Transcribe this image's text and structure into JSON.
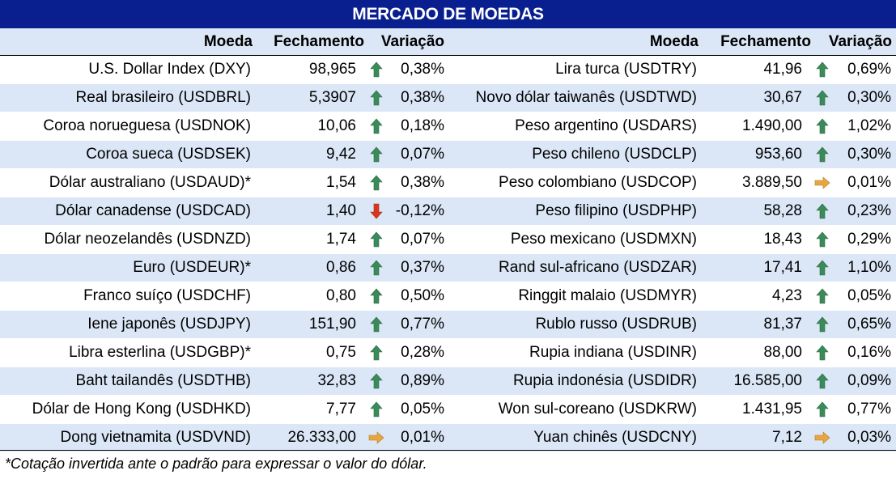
{
  "title": "MERCADO DE MOEDAS",
  "headers": {
    "left": {
      "currency": "Moeda",
      "close": "Fechamento",
      "change": "Variação"
    },
    "right": {
      "currency": "Moeda",
      "close": "Fechamento",
      "change": "Variação"
    }
  },
  "colors": {
    "title_bg": "#0a1f8f",
    "band": "#dbe7f6",
    "up": "#3a8a5a",
    "down": "#d8371f",
    "flat": "#e8a640"
  },
  "rows": [
    {
      "left": {
        "name": "U.S. Dollar Index (DXY)",
        "close": "98,965",
        "dir": "up",
        "change": "0,38%"
      },
      "right": {
        "name": "Lira turca (USDTRY)",
        "close": "41,96",
        "dir": "up",
        "change": "0,69%"
      }
    },
    {
      "left": {
        "name": "Real brasileiro (USDBRL)",
        "close": "5,3907",
        "dir": "up",
        "change": "0,38%"
      },
      "right": {
        "name": "Novo dólar taiwanês (USDTWD)",
        "close": "30,67",
        "dir": "up",
        "change": "0,30%"
      }
    },
    {
      "left": {
        "name": "Coroa norueguesa (USDNOK)",
        "close": "10,06",
        "dir": "up",
        "change": "0,18%"
      },
      "right": {
        "name": "Peso argentino (USDARS)",
        "close": "1.490,00",
        "dir": "up",
        "change": "1,02%"
      }
    },
    {
      "left": {
        "name": "Coroa sueca (USDSEK)",
        "close": "9,42",
        "dir": "up",
        "change": "0,07%"
      },
      "right": {
        "name": "Peso chileno (USDCLP)",
        "close": "953,60",
        "dir": "up",
        "change": "0,30%"
      }
    },
    {
      "left": {
        "name": "Dólar australiano (USDAUD)*",
        "close": "1,54",
        "dir": "up",
        "change": "0,38%"
      },
      "right": {
        "name": "Peso colombiano (USDCOP)",
        "close": "3.889,50",
        "dir": "flat",
        "change": "0,01%"
      }
    },
    {
      "left": {
        "name": "Dólar canadense (USDCAD)",
        "close": "1,40",
        "dir": "down",
        "change": "-0,12%"
      },
      "right": {
        "name": "Peso filipino (USDPHP)",
        "close": "58,28",
        "dir": "up",
        "change": "0,23%"
      }
    },
    {
      "left": {
        "name": "Dólar neozelandês (USDNZD)",
        "close": "1,74",
        "dir": "up",
        "change": "0,07%"
      },
      "right": {
        "name": "Peso mexicano (USDMXN)",
        "close": "18,43",
        "dir": "up",
        "change": "0,29%"
      }
    },
    {
      "left": {
        "name": "Euro (USDEUR)*",
        "close": "0,86",
        "dir": "up",
        "change": "0,37%"
      },
      "right": {
        "name": "Rand sul-africano (USDZAR)",
        "close": "17,41",
        "dir": "up",
        "change": "1,10%"
      }
    },
    {
      "left": {
        "name": "Franco suíço (USDCHF)",
        "close": "0,80",
        "dir": "up",
        "change": "0,50%"
      },
      "right": {
        "name": "Ringgit malaio (USDMYR)",
        "close": "4,23",
        "dir": "up",
        "change": "0,05%"
      }
    },
    {
      "left": {
        "name": "Iene japonês (USDJPY)",
        "close": "151,90",
        "dir": "up",
        "change": "0,77%"
      },
      "right": {
        "name": "Rublo russo (USDRUB)",
        "close": "81,37",
        "dir": "up",
        "change": "0,65%"
      }
    },
    {
      "left": {
        "name": "Libra esterlina (USDGBP)*",
        "close": "0,75",
        "dir": "up",
        "change": "0,28%"
      },
      "right": {
        "name": "Rupia indiana (USDINR)",
        "close": "88,00",
        "dir": "up",
        "change": "0,16%"
      }
    },
    {
      "left": {
        "name": "Baht tailandês (USDTHB)",
        "close": "32,83",
        "dir": "up",
        "change": "0,89%"
      },
      "right": {
        "name": "Rupia indonésia (USDIDR)",
        "close": "16.585,00",
        "dir": "up",
        "change": "0,09%"
      }
    },
    {
      "left": {
        "name": "Dólar de Hong Kong (USDHKD)",
        "close": "7,77",
        "dir": "up",
        "change": "0,05%"
      },
      "right": {
        "name": "Won sul-coreano (USDKRW)",
        "close": "1.431,95",
        "dir": "up",
        "change": "0,77%"
      }
    },
    {
      "left": {
        "name": "Dong vietnamita (USDVND)",
        "close": "26.333,00",
        "dir": "flat",
        "change": "0,01%"
      },
      "right": {
        "name": "Yuan chinês (USDCNY)",
        "close": "7,12",
        "dir": "flat",
        "change": "0,03%"
      }
    }
  ],
  "footnote": "*Cotação invertida ante o padrão para expressar o valor do dólar."
}
